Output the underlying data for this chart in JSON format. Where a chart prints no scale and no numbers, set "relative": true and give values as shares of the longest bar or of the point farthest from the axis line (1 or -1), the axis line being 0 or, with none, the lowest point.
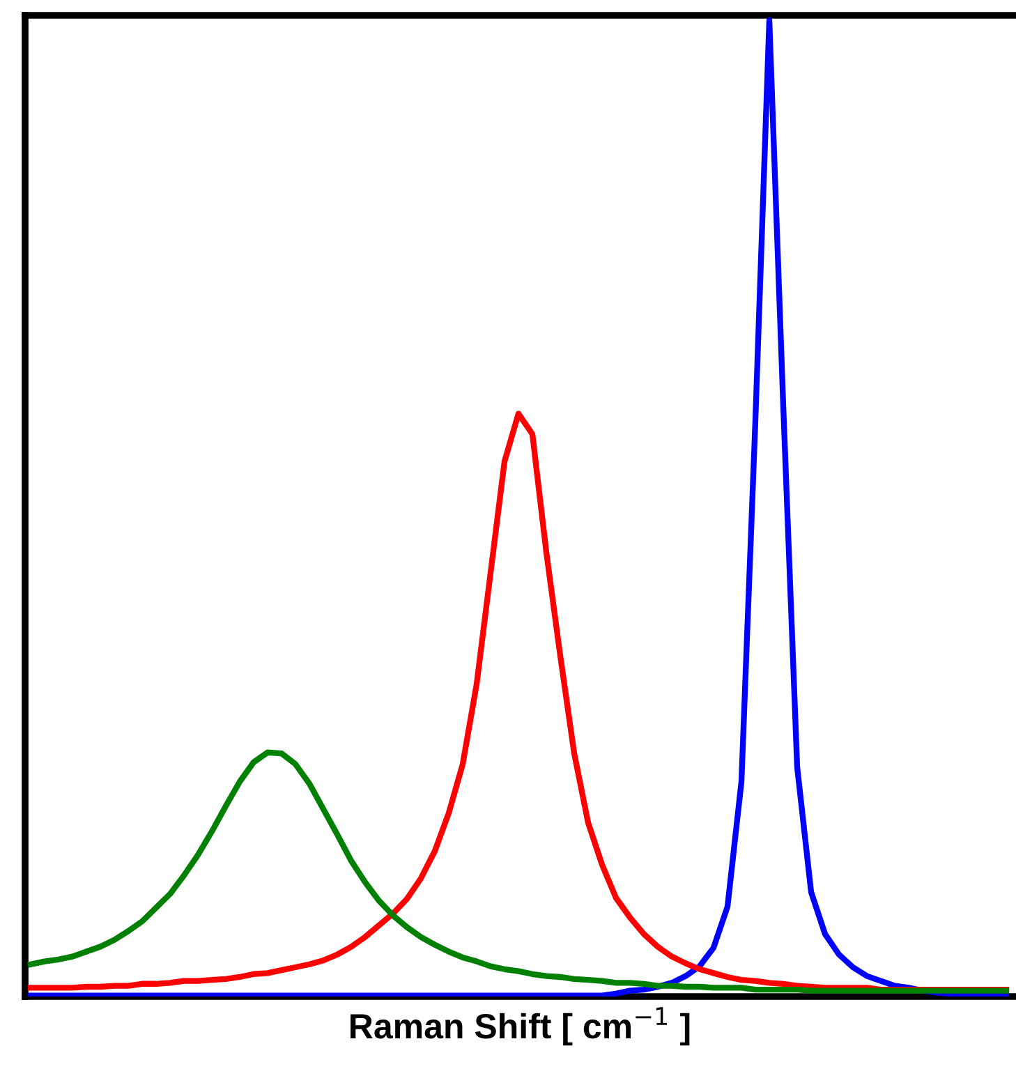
{
  "chart_data": {
    "type": "line",
    "xlabel": "Raman Shift [ cm$^{−1}$ ]",
    "relative": true,
    "grid": false,
    "legend": false,
    "marker": "none",
    "line_style": "solid",
    "categories": [
      null,
      null,
      null,
      null,
      null,
      null,
      null,
      null,
      null,
      null,
      null,
      null,
      null,
      null,
      null,
      null,
      null,
      null,
      null,
      null,
      null,
      null,
      null,
      null,
      null,
      null,
      null,
      null,
      null,
      null,
      null,
      null,
      null,
      null,
      null,
      null,
      null,
      null,
      null,
      null,
      null,
      null,
      null,
      null,
      null,
      null,
      null,
      null,
      null,
      null,
      null,
      null,
      null,
      null,
      null,
      null,
      null,
      null,
      null,
      null,
      null,
      null,
      null,
      null,
      null,
      null,
      null,
      null,
      null,
      null,
      null
    ],
    "series": [
      {
        "color": "#008000",
        "values": [
          0.033,
          0.036,
          0.038,
          0.041,
          0.046,
          0.051,
          0.058,
          0.067,
          0.077,
          0.091,
          0.105,
          0.124,
          0.145,
          0.169,
          0.195,
          0.22,
          0.24,
          0.25,
          0.249,
          0.238,
          0.218,
          0.192,
          0.166,
          0.139,
          0.117,
          0.098,
          0.083,
          0.071,
          0.061,
          0.053,
          0.046,
          0.04,
          0.036,
          0.031,
          0.028,
          0.026,
          0.023,
          0.021,
          0.02,
          0.018,
          0.017,
          0.016,
          0.014,
          0.014,
          0.013,
          0.011,
          0.011,
          0.01,
          0.01,
          0.009,
          0.009,
          0.009,
          0.007,
          0.007,
          0.007,
          0.007,
          0.006,
          0.006,
          0.006,
          0.006,
          0.006,
          0.006,
          0.006,
          0.006,
          0.006,
          0.006,
          0.006,
          0.006,
          0.006,
          0.006,
          0.006
        ]
      },
      {
        "color": "#ff0000",
        "values": [
          0.009,
          0.009,
          0.009,
          0.009,
          0.01,
          0.01,
          0.011,
          0.011,
          0.013,
          0.013,
          0.014,
          0.016,
          0.016,
          0.017,
          0.018,
          0.02,
          0.023,
          0.024,
          0.027,
          0.03,
          0.033,
          0.037,
          0.043,
          0.051,
          0.061,
          0.073,
          0.085,
          0.1,
          0.121,
          0.149,
          0.188,
          0.238,
          0.32,
          0.434,
          0.548,
          0.597,
          0.576,
          0.455,
          0.349,
          0.249,
          0.178,
          0.135,
          0.101,
          0.081,
          0.064,
          0.051,
          0.041,
          0.034,
          0.028,
          0.024,
          0.02,
          0.017,
          0.016,
          0.014,
          0.013,
          0.011,
          0.01,
          0.009,
          0.009,
          0.009,
          0.009,
          0.007,
          0.007,
          0.007,
          0.007,
          0.007,
          0.007,
          0.007,
          0.007,
          0.007,
          0.007
        ]
      },
      {
        "color": "#0000ff",
        "values": [
          0.001,
          0.001,
          0.001,
          0.001,
          0.001,
          0.001,
          0.001,
          0.001,
          0.001,
          0.001,
          0.001,
          0.001,
          0.001,
          0.001,
          0.001,
          0.001,
          0.001,
          0.001,
          0.001,
          0.001,
          0.001,
          0.001,
          0.001,
          0.001,
          0.001,
          0.001,
          0.001,
          0.001,
          0.001,
          0.001,
          0.001,
          0.001,
          0.001,
          0.001,
          0.001,
          0.001,
          0.001,
          0.001,
          0.001,
          0.001,
          0.001,
          0.001,
          0.003,
          0.006,
          0.007,
          0.01,
          0.014,
          0.021,
          0.031,
          0.05,
          0.092,
          0.22,
          0.59,
          1,
          0.605,
          0.235,
          0.107,
          0.064,
          0.043,
          0.03,
          0.021,
          0.016,
          0.011,
          0.009,
          0.006,
          0.004,
          0.003,
          0.001,
          0.001,
          0.001,
          0.001
        ]
      }
    ]
  }
}
